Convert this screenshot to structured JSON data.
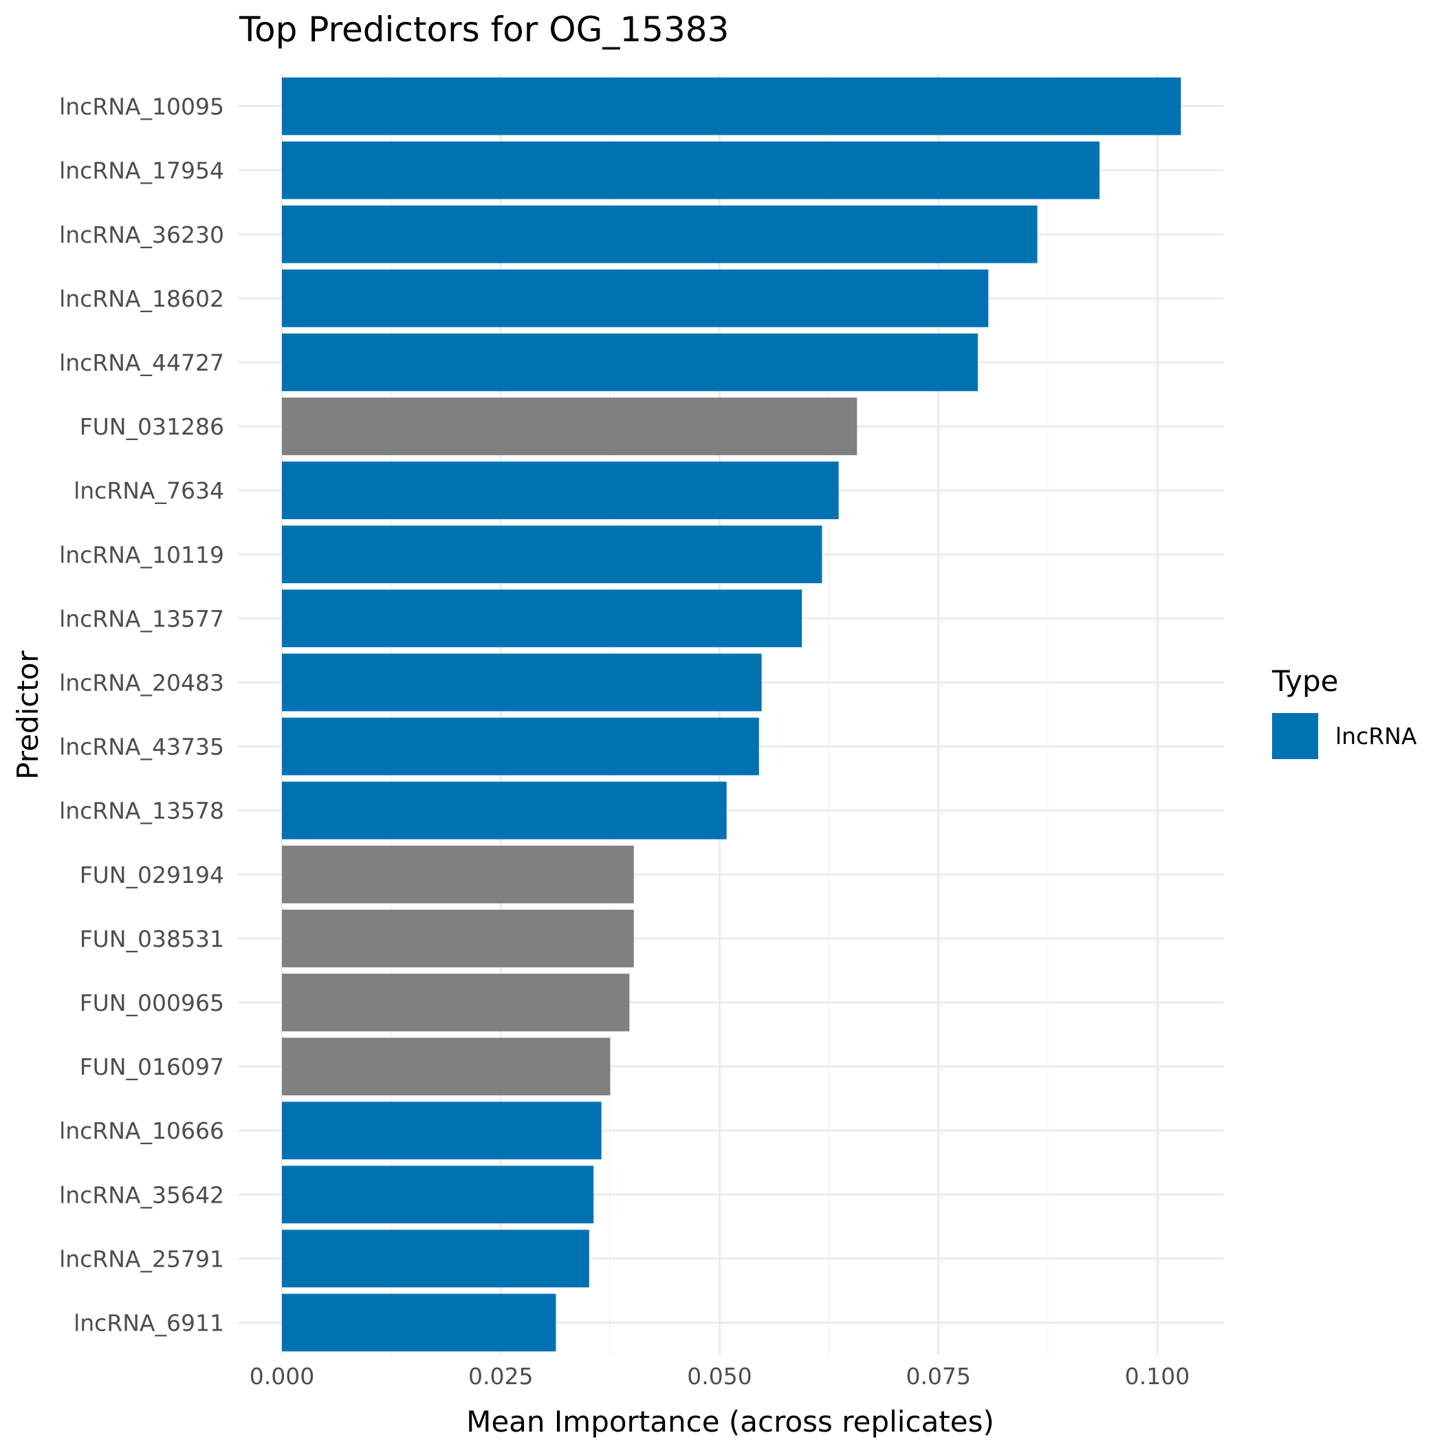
{
  "chart_data": {
    "type": "bar",
    "orientation": "horizontal",
    "title": "Top Predictors for OG_15383",
    "xlabel": "Mean Importance (across replicates)",
    "ylabel": "Predictor",
    "xlim": [
      0,
      0.1075
    ],
    "x_ticks": [
      "0.000",
      "0.025",
      "0.050",
      "0.075",
      "0.100"
    ],
    "x_tick_values": [
      0,
      0.025,
      0.05,
      0.075,
      0.1
    ],
    "grid": true,
    "legend": {
      "title": "Type",
      "placement": "right",
      "entries": [
        {
          "label": "lncRNA",
          "color": "#0072b2"
        }
      ]
    },
    "colors": {
      "lncRNA": "#0072b2",
      "other": "#808080"
    },
    "categories": [
      "lncRNA_10095",
      "lncRNA_17954",
      "lncRNA_36230",
      "lncRNA_18602",
      "lncRNA_44727",
      "FUN_031286",
      "lncRNA_7634",
      "lncRNA_10119",
      "lncRNA_13577",
      "lncRNA_20483",
      "lncRNA_43735",
      "lncRNA_13578",
      "FUN_029194",
      "FUN_038531",
      "FUN_000965",
      "FUN_016097",
      "lncRNA_10666",
      "lncRNA_35642",
      "lncRNA_25791",
      "lncRNA_6911"
    ],
    "values": [
      0.1027,
      0.0934,
      0.0863,
      0.0807,
      0.0795,
      0.0657,
      0.0636,
      0.0617,
      0.0594,
      0.0548,
      0.0545,
      0.0508,
      0.0402,
      0.0402,
      0.0397,
      0.0375,
      0.0365,
      0.0356,
      0.0351,
      0.0313
    ],
    "types": [
      "lncRNA",
      "lncRNA",
      "lncRNA",
      "lncRNA",
      "lncRNA",
      "other",
      "lncRNA",
      "lncRNA",
      "lncRNA",
      "lncRNA",
      "lncRNA",
      "lncRNA",
      "other",
      "other",
      "other",
      "other",
      "lncRNA",
      "lncRNA",
      "lncRNA",
      "lncRNA"
    ]
  }
}
